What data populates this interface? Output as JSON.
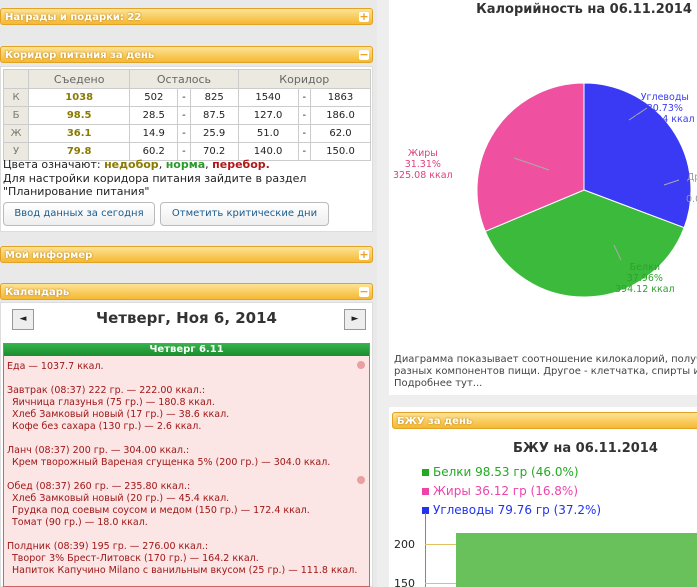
{
  "rewards": {
    "title": "Награды и подарки: 22"
  },
  "corridor": {
    "title": "Коридор питания за день",
    "headers": [
      "Съедено",
      "Осталось",
      "Коридор"
    ],
    "rows": [
      {
        "key": "К",
        "eaten": "1038",
        "left_min": "502",
        "left_max": "825",
        "cor_min": "1540",
        "cor_max": "1863"
      },
      {
        "key": "Б",
        "eaten": "98.5",
        "left_min": "28.5",
        "left_max": "87.5",
        "cor_min": "127.0",
        "cor_max": "186.0"
      },
      {
        "key": "Ж",
        "eaten": "36.1",
        "left_min": "14.9",
        "left_max": "25.9",
        "cor_min": "51.0",
        "cor_max": "62.0"
      },
      {
        "key": "У",
        "eaten": "79.8",
        "left_min": "60.2",
        "left_max": "70.2",
        "cor_min": "140.0",
        "cor_max": "150.0"
      }
    ],
    "dash": "-",
    "legend_prefix": "Цвета означают:",
    "legend_under": "недобор",
    "legend_norm": "норма",
    "legend_over": "перебор.",
    "hint_line1": "Для настройки коридора питания зайдите в раздел",
    "hint_line2": "\"Планирование питания\"",
    "btn_enter": "Ввод данных за сегодня",
    "btn_critical": "Отметить критические дни"
  },
  "informer": {
    "title": "Мой информер"
  },
  "calendar": {
    "title": "Календарь",
    "date": "Четверг, Ноя 6, 2014",
    "prev": "◄",
    "next": "►",
    "day_header": "Четверг 6.11",
    "food_total": "Еда — 1037.7 ккал.",
    "meals": [
      {
        "title": "Завтрак (08:37) 222 гр. — 222.00 ккал.:",
        "items": [
          "Яичница глазунья (75 гр.) — 180.8 ккал.",
          "Хлеб Замковый новый (17 гр.) — 38.6 ккал.",
          "Кофе без сахара (130 гр.) — 2.6 ккал."
        ]
      },
      {
        "title": "Ланч (08:37) 200 гр. — 304.00 ккал.:",
        "items": [
          "Крем творожный Вареная сгущенка 5% (200 гр.) — 304.0 ккал."
        ]
      },
      {
        "title": "Обед (08:37) 260 гр. — 235.80 ккал.:",
        "items": [
          "Хлеб Замковый новый (20 гр.) — 45.4 ккал.",
          "Грудка под соевым соусом и медом (150 гр.) — 172.4 ккал.",
          "Томат (90 гр.) — 18.0 ккал."
        ]
      },
      {
        "title": "Полдник (08:39) 195 гр. — 276.00 ккал.:",
        "items": [
          "Творог 3% Брест-Литовск (170 гр.) — 164.2 ккал.",
          "Напиток Капучино Milano с ванильным вкусом (25 гр.) — 111.8 ккал."
        ]
      }
    ]
  },
  "calories": {
    "title": "Калорийность на 06.11.2014",
    "slices": [
      {
        "name": "Углеводы",
        "percent": "30.73%",
        "kcal": "319.04 ккал",
        "color": "#3a3af5"
      },
      {
        "name": "Жиры",
        "percent": "31.31%",
        "kcal": "325.08 ккал",
        "color": "#f050a0"
      },
      {
        "name": "Белки",
        "percent": "37.96%",
        "kcal": "394.12 ккал",
        "color": "#3cba3c"
      }
    ],
    "other_label_fragment": "Др",
    "other_value_fragment": "0.0",
    "desc_line1": "Диаграмма показывает соотношение килокалорий, получе",
    "desc_line2": "разных компонентов пищи. Другое - клетчатка, спирты и т.",
    "desc_line3": "Подробнее тут..."
  },
  "bju": {
    "panel_title": "БЖУ за день",
    "chart_title": "БЖУ на 06.11.2014",
    "legend": [
      {
        "label": "Белки 98.53 гр (46.0%)",
        "color": "#22aa22"
      },
      {
        "label": "Жиры 36.12 гр (16.8%)",
        "color": "#ee44aa"
      },
      {
        "label": "Углеводы 79.76 гр (37.2%)",
        "color": "#2233ee"
      }
    ],
    "y_ticks": [
      "200",
      "150"
    ]
  },
  "chart_data": [
    {
      "type": "pie",
      "title": "Калорийность на 06.11.2014",
      "categories": [
        "Белки",
        "Жиры",
        "Углеводы",
        "Др"
      ],
      "values": [
        37.96,
        31.31,
        30.73,
        0.0
      ]
    },
    {
      "type": "bar",
      "title": "БЖУ на 06.11.2014",
      "categories": [
        "Белки",
        "Жиры",
        "Углеводы"
      ],
      "values": [
        98.53,
        36.12,
        79.76
      ]
    }
  ]
}
